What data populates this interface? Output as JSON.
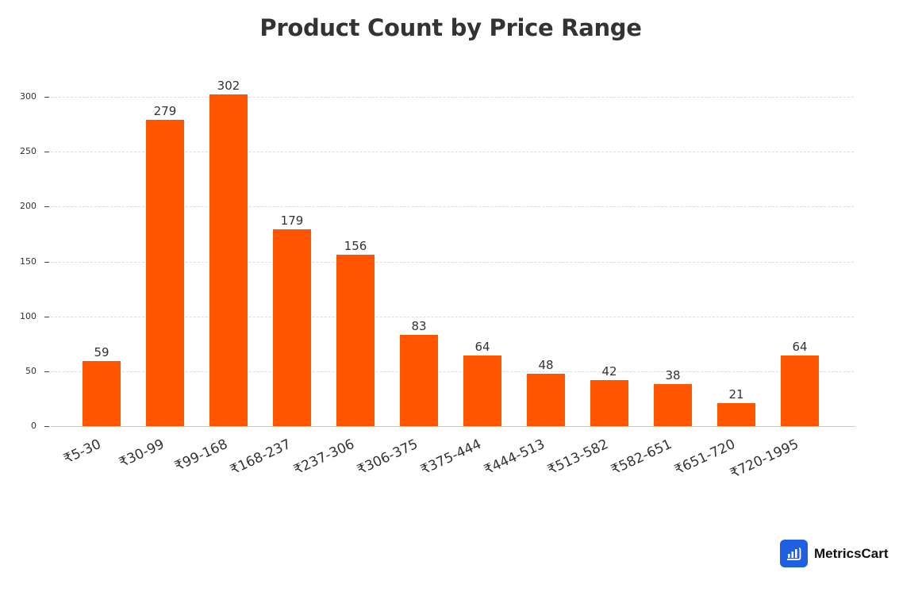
{
  "chart_data": {
    "type": "bar",
    "title": "Product Count by Price Range",
    "xlabel": "",
    "ylabel": "",
    "categories": [
      "₹5-30",
      "₹30-99",
      "₹99-168",
      "₹168-237",
      "₹237-306",
      "₹306-375",
      "₹375-444",
      "₹444-513",
      "₹513-582",
      "₹582-651",
      "₹651-720",
      "₹720-1995"
    ],
    "values": [
      59,
      279,
      302,
      179,
      156,
      83,
      64,
      48,
      42,
      38,
      21,
      64
    ],
    "yticks": [
      0,
      50,
      100,
      150,
      200,
      250,
      300
    ],
    "ylim": [
      0,
      300
    ],
    "grid": true,
    "legend": null,
    "bar_color": "#ff5500",
    "data_labels": true
  },
  "branding": {
    "name": "MetricsCart",
    "icon": "bar-chart-cart-icon",
    "icon_color": "#1f5fe0"
  }
}
